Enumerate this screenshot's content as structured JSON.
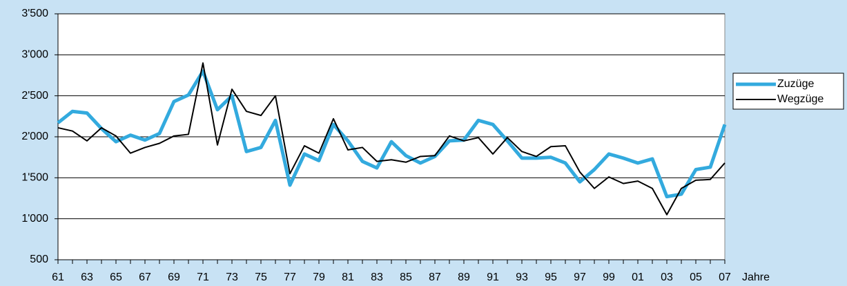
{
  "chart_data": {
    "type": "line",
    "categories": [
      "61",
      null,
      "63",
      null,
      "65",
      null,
      "67",
      null,
      "69",
      null,
      "71",
      null,
      "73",
      null,
      "75",
      null,
      "77",
      null,
      "79",
      null,
      "81",
      null,
      "83",
      null,
      "85",
      null,
      "87",
      null,
      "89",
      null,
      "91",
      null,
      "93",
      null,
      "95",
      null,
      "97",
      null,
      "99",
      null,
      "01",
      null,
      "03",
      null,
      "05",
      null,
      "07"
    ],
    "x_label": "Jahre",
    "series": [
      {
        "name": "Zuzüge",
        "color": "#33aade",
        "values": [
          2170,
          2310,
          2290,
          2100,
          1940,
          2020,
          1960,
          2040,
          2430,
          2510,
          2800,
          2330,
          2500,
          1820,
          1870,
          2200,
          1410,
          1790,
          1710,
          2150,
          1950,
          1700,
          1620,
          1940,
          1770,
          1680,
          1760,
          1950,
          1960,
          2200,
          2150,
          1950,
          1740,
          1740,
          1750,
          1680,
          1450,
          1600,
          1790,
          1740,
          1680,
          1730,
          1270,
          1300,
          1600,
          1630,
          2150
        ]
      },
      {
        "name": "Wegzüge",
        "color": "#000000",
        "values": [
          2110,
          2070,
          1950,
          2110,
          2010,
          1800,
          1870,
          1920,
          2010,
          2030,
          2900,
          1900,
          2580,
          2310,
          2260,
          2500,
          1550,
          1890,
          1800,
          2220,
          1840,
          1870,
          1700,
          1720,
          1690,
          1760,
          1770,
          2010,
          1950,
          1990,
          1790,
          1990,
          1820,
          1760,
          1880,
          1890,
          1570,
          1370,
          1510,
          1430,
          1460,
          1370,
          1050,
          1370,
          1470,
          1480,
          1680
        ]
      }
    ],
    "ylim": [
      500,
      3500
    ],
    "yticks": [
      500,
      {
        "value": 1000,
        "label": "1'000"
      },
      {
        "value": 1500,
        "label": "1'500"
      },
      {
        "value": 2000,
        "label": "2'000"
      },
      {
        "value": 2500,
        "label": "2'500"
      },
      {
        "value": 3000,
        "label": "3'000"
      },
      {
        "value": 3500,
        "label": "3'500"
      }
    ],
    "grid": true,
    "legend": "right"
  }
}
